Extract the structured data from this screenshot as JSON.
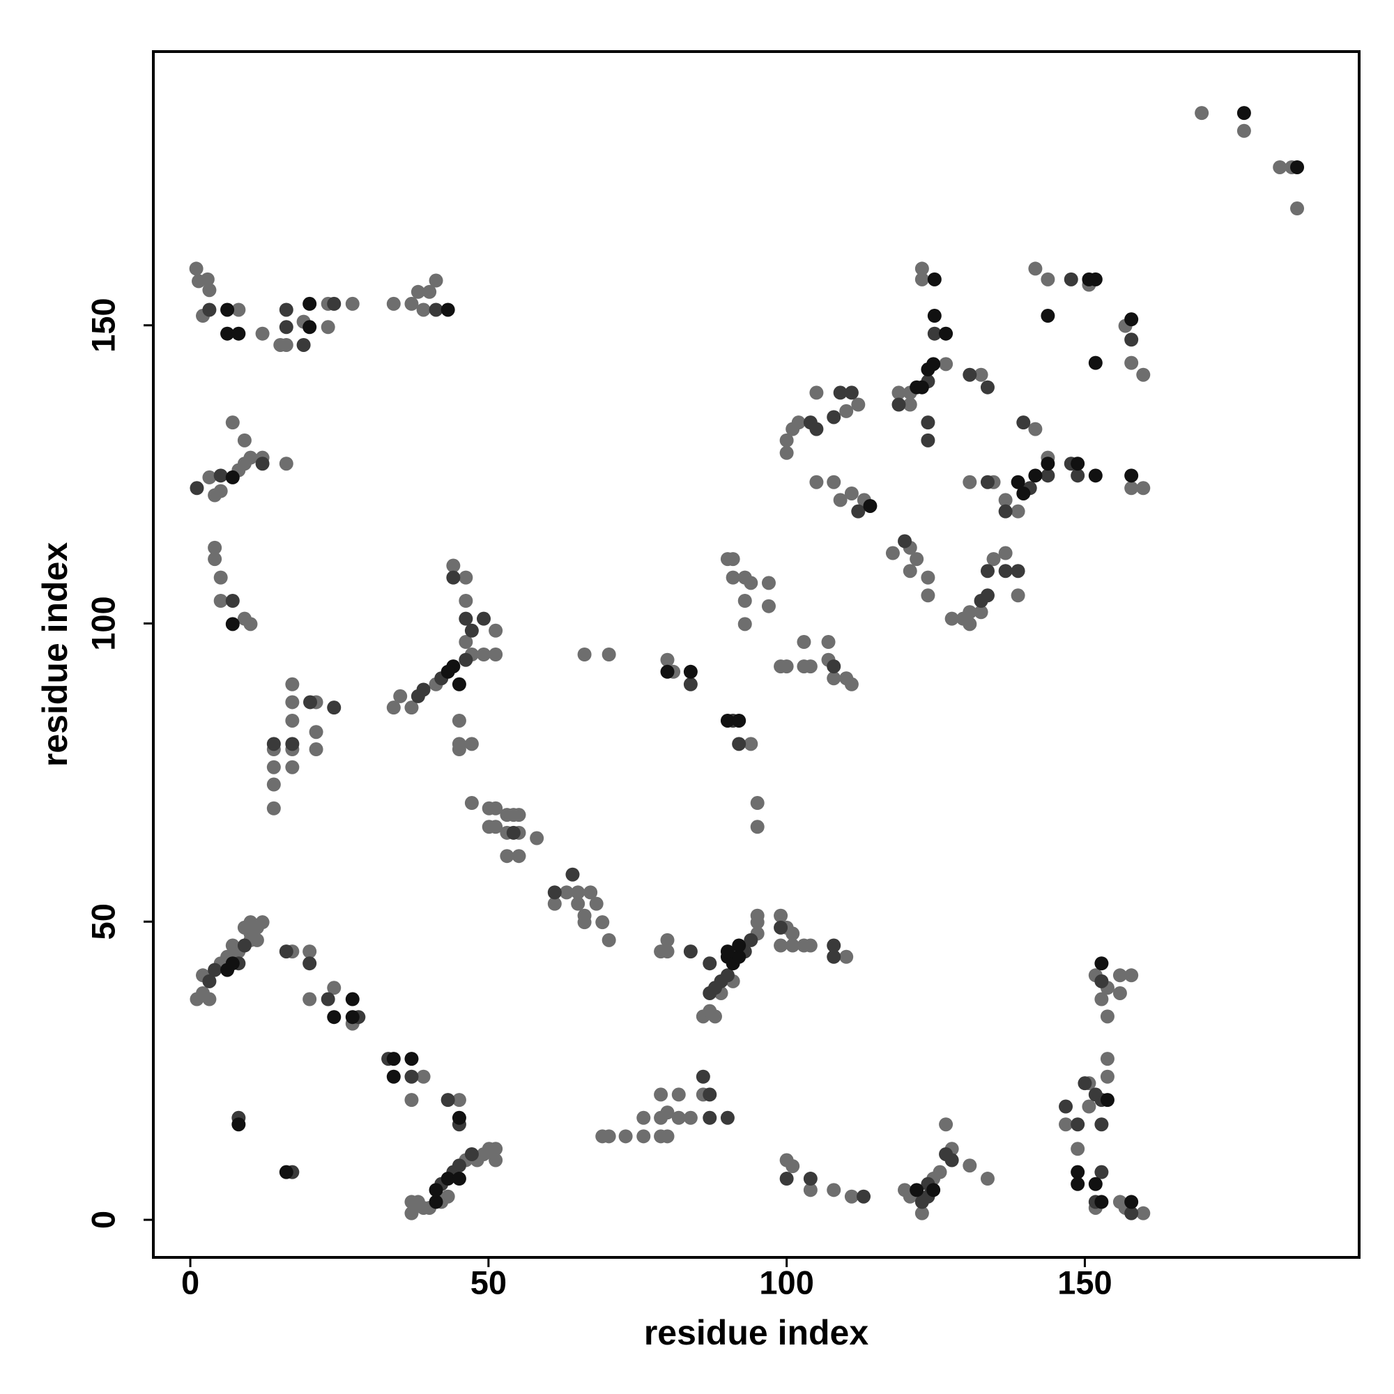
{
  "chart_data": {
    "type": "scatter",
    "xlabel": "residue index",
    "ylabel": "residue index",
    "xlim": [
      -6.2,
      196
    ],
    "ylim": [
      -6.3,
      195.9
    ],
    "xticks": [
      0,
      50,
      100,
      150
    ],
    "yticks": [
      0,
      50,
      100,
      150
    ],
    "series": [
      {
        "color": "#6e6e6e",
        "x": [
          169.6,
          176.7,
          182.7,
          184.7,
          185.6,
          1,
          1.4,
          2.9,
          3.2,
          2.1,
          8.1,
          12.1,
          15.1,
          16.1,
          19,
          23.1,
          23.1,
          27.2,
          34.1,
          37.1,
          38.2,
          39.1,
          40.1,
          41.2,
          3.2,
          4.1,
          5.1,
          8.1,
          9.1,
          10.1,
          12.1,
          7.1,
          9.1,
          16.1,
          4.1,
          4.1,
          5.1,
          5.1,
          9.1,
          10.1,
          14,
          14,
          14,
          14,
          17.1,
          17.1,
          17.1,
          17.1,
          17.1,
          21.1,
          21.1,
          21.1,
          34.1,
          35.2,
          37.1,
          41.2,
          47.2,
          49.2,
          51.2,
          46.2,
          51.2,
          46.2,
          46.2,
          44.1,
          45.1,
          45.1,
          47.2,
          45.1,
          47.2,
          50.1,
          51.2,
          50.1,
          51.2,
          53.1,
          54.2,
          55.1,
          53.1,
          55.1,
          53.1,
          55.1,
          58.1,
          61.1,
          63.1,
          65,
          65,
          67.1,
          66.1,
          66.1,
          68.1,
          69.1,
          70.2,
          1.1,
          2.1,
          2.1,
          3.2,
          5.1,
          6.2,
          8.1,
          10.1,
          10.1,
          11.2,
          12.1,
          11.2,
          9.1,
          10.1,
          7.1,
          17.1,
          20,
          20,
          24.1,
          27.2,
          39.1,
          37.1,
          45.1,
          37.1,
          37.1,
          38.2,
          40.1,
          43.2,
          46.2,
          48.1,
          49.2,
          50.1,
          51.2,
          51.2,
          42.1,
          39.1,
          66.1,
          70.2,
          80,
          81,
          90.1,
          91,
          91,
          93,
          93,
          93,
          94,
          97,
          97,
          94,
          95.1,
          95.1,
          99,
          100,
          102.9,
          102.9,
          104,
          107,
          107,
          107.9,
          110,
          110.9,
          80,
          80,
          78.9,
          86,
          87.1,
          88,
          95.1,
          95.1,
          95.1,
          89,
          91,
          99,
          100,
          101,
          99,
          101,
          102.9,
          104,
          110,
          69.1,
          70.2,
          73,
          76,
          76,
          78.9,
          78.9,
          80,
          80,
          78.9,
          81.9,
          81.9,
          83.9,
          86,
          100,
          101,
          104,
          107.9,
          110.9,
          119.8,
          120.7,
          122.7,
          124.6,
          125.7,
          126.7,
          127.7,
          130.7,
          133.7,
          146.8,
          148.8,
          150.7,
          150.7,
          153.8,
          153.8,
          153.8,
          151.8,
          153.8,
          152.8,
          155.9,
          155.9,
          157.8,
          155.9,
          156.8,
          159.8,
          151.8,
          100,
          100,
          101,
          102,
          105,
          105,
          107.9,
          110,
          112,
          109,
          110.9,
          113,
          118.8,
          120.7,
          122.7,
          122.7,
          126.7,
          120.7,
          132.6,
          130.7,
          134.7,
          136.7,
          138.8,
          141.7,
          143.8,
          141.7,
          143.8,
          150.7,
          157.8,
          159.8,
          156.8,
          157.8,
          159.8,
          117.8,
          120.7,
          121.8,
          120.7,
          123.7,
          123.7,
          127.7,
          129.6,
          130.7,
          130.7,
          132.6,
          134.7,
          136.7,
          138.8
        ],
        "values": [
          185.6,
          182.6,
          176.5,
          176.5,
          169.6,
          159.5,
          157.4,
          157.7,
          155.9,
          151.6,
          152.6,
          148.6,
          146.7,
          146.7,
          150.6,
          153.6,
          149.7,
          153.6,
          153.6,
          153.6,
          155.6,
          152.6,
          155.6,
          157.5,
          124.5,
          121.5,
          122.2,
          125.7,
          126.8,
          127.8,
          127.8,
          133.7,
          130.7,
          126.8,
          112.7,
          110.8,
          107.7,
          103.8,
          100.8,
          99.9,
          69,
          73,
          75.9,
          78.9,
          89.8,
          86.8,
          83.7,
          75.9,
          78.9,
          86.8,
          81.8,
          78.9,
          85.9,
          87.8,
          85.9,
          89.8,
          94.8,
          94.8,
          94.8,
          96.9,
          98.8,
          103.8,
          107.7,
          109.7,
          83.7,
          79.8,
          79.8,
          78.9,
          69.9,
          69,
          69,
          65.9,
          65.9,
          67.9,
          67.9,
          67.9,
          64.9,
          64.9,
          61,
          61,
          64,
          53,
          54.9,
          54.9,
          53,
          54.9,
          51,
          49.9,
          53,
          49.9,
          46.9,
          37,
          38,
          41,
          37,
          43,
          44.1,
          45,
          48,
          46.9,
          49,
          49.9,
          46.9,
          49,
          49.9,
          46,
          45,
          45,
          37,
          38.9,
          32.9,
          24,
          20.1,
          20.1,
          1.1,
          3,
          3,
          2,
          3.9,
          10,
          10,
          11,
          11.9,
          11.9,
          10,
          3,
          2,
          94.8,
          94.8,
          93.9,
          91.9,
          110.8,
          110.8,
          107.7,
          107.7,
          103.8,
          99.9,
          106.8,
          106.8,
          102.9,
          79.8,
          69.9,
          65.9,
          92.8,
          92.8,
          96.9,
          92.8,
          92.8,
          96.9,
          93.9,
          90.8,
          90.8,
          89.8,
          45,
          46.9,
          45,
          34.1,
          35,
          34.1,
          48,
          49.9,
          51,
          38,
          40,
          51,
          49,
          48,
          46,
          46,
          46,
          46,
          44.1,
          14,
          14,
          14,
          14,
          17.1,
          17.1,
          14,
          14,
          18,
          21,
          21,
          17.1,
          17.1,
          21,
          10,
          9,
          5,
          5,
          3.9,
          5,
          3.9,
          1.1,
          6.9,
          8,
          16,
          11.9,
          9.1,
          6.9,
          16,
          11.9,
          22.9,
          19,
          24,
          27,
          34.1,
          41,
          38.9,
          37,
          41,
          38,
          41,
          3,
          2,
          1.1,
          2,
          130.7,
          128.6,
          132.6,
          133.7,
          138.7,
          123.7,
          123.7,
          135.6,
          136.7,
          120.7,
          121.8,
          120.7,
          138.7,
          138.7,
          159.5,
          157.7,
          143.5,
          136.7,
          141.7,
          123.7,
          123.7,
          120.7,
          118.8,
          132.6,
          127.8,
          159.5,
          157.7,
          156.8,
          122.7,
          122.7,
          149.9,
          143.7,
          141.7,
          111.8,
          112.7,
          110.8,
          108.8,
          107.7,
          104.7,
          100.8,
          100.8,
          101.9,
          99.9,
          101.9,
          110.8,
          111.8,
          104.7
        ]
      },
      {
        "color": "#3a3a3a",
        "x": [
          16.1,
          16.1,
          19,
          24.1,
          41.2,
          3.2,
          1.1,
          5.1,
          12.1,
          7.1,
          14,
          17.1,
          20.1,
          24.1,
          38.2,
          39.1,
          42.1,
          46.2,
          47.2,
          46.2,
          49.2,
          44.1,
          54.2,
          61.1,
          64.1,
          3.2,
          4.1,
          8.1,
          9.1,
          16.1,
          20,
          23.1,
          28.2,
          33.2,
          37.1,
          43.2,
          45.1,
          8.1,
          17.1,
          42.1,
          44.1,
          45.1,
          47.2,
          83.9,
          91,
          92,
          83.9,
          87.1,
          88,
          89,
          90.1,
          93,
          94,
          87.1,
          99,
          107.9,
          107.9,
          86,
          87.1,
          87.1,
          90.1,
          100,
          104,
          112.9,
          122.7,
          123.7,
          123.7,
          126.7,
          127.7,
          146.8,
          148.8,
          150,
          151.8,
          151.8,
          152.8,
          152.8,
          152.8,
          152.8,
          157.8,
          104,
          105,
          107.9,
          109,
          110.9,
          112,
          118.8,
          123.7,
          124.8,
          123.7,
          123.7,
          130.7,
          133.7,
          133.7,
          136.7,
          140.8,
          143.8,
          139.7,
          147.7,
          147.7,
          148.8,
          157.8,
          119.8,
          132.6,
          133.7,
          133.7,
          136.7,
          138.8,
          107.9
        ],
        "values": [
          152.6,
          149.7,
          146.7,
          153.6,
          152.6,
          152.6,
          122.7,
          124.8,
          126.8,
          103.8,
          79.8,
          79.8,
          86.8,
          85.9,
          87.8,
          88.9,
          90.8,
          93.9,
          98.8,
          100.8,
          100.8,
          107.7,
          64.9,
          54.9,
          57.9,
          40,
          41.9,
          43,
          46,
          45,
          43,
          37,
          34,
          27,
          24,
          20.1,
          16,
          17.1,
          8,
          6,
          8,
          9.1,
          11,
          89.8,
          83.7,
          79.8,
          45,
          38,
          38.9,
          40,
          41,
          45,
          46.9,
          43,
          49,
          46,
          44.1,
          24,
          21,
          17.1,
          17.1,
          6.9,
          6.9,
          3.9,
          3,
          3.9,
          6,
          11,
          10,
          19,
          16,
          22.9,
          21,
          3,
          8,
          16,
          20.1,
          40,
          1.1,
          133.7,
          132.6,
          134.6,
          138.7,
          138.7,
          118.8,
          136.7,
          140.6,
          148.6,
          133.7,
          130.7,
          141.7,
          139.6,
          123.7,
          118.8,
          122.7,
          124.8,
          133.7,
          157.7,
          126.8,
          124.8,
          147.6,
          113.8,
          103.8,
          104.7,
          108.8,
          108.8,
          108.8,
          92.8
        ]
      },
      {
        "color": "#111111",
        "x": [
          176.7,
          185.6,
          6.2,
          6.2,
          8.1,
          20,
          20,
          43.2,
          7.1,
          7.1,
          44.1,
          43.2,
          45.1,
          6.2,
          7.1,
          24.1,
          27.2,
          27.2,
          34.1,
          37.1,
          34.1,
          45.1,
          8.1,
          16.1,
          41.2,
          41.2,
          43.2,
          45.1,
          80,
          83.9,
          90.1,
          92,
          90.1,
          91,
          92,
          92,
          90.1,
          121.8,
          124.6,
          148.8,
          148.8,
          151.8,
          152.8,
          153.8,
          152.8,
          157.8,
          114,
          121.8,
          122.7,
          123.7,
          124.6,
          124.8,
          124.8,
          126.7,
          138.8,
          139.7,
          141.7,
          143.8,
          143.8,
          150.7,
          151.8,
          151.8,
          148.8,
          151.8,
          157.8,
          157.8
        ],
        "values": [
          185.6,
          176.5,
          152.6,
          148.6,
          148.6,
          153.6,
          149.7,
          152.6,
          124.5,
          99.9,
          92.8,
          91.9,
          89.8,
          41.9,
          43,
          34,
          37,
          34,
          27,
          27,
          24,
          17.1,
          16,
          8,
          3,
          5,
          6.9,
          6.9,
          91.9,
          91.9,
          83.7,
          83.7,
          44.1,
          43,
          44.1,
          46,
          45,
          5,
          5,
          8,
          6,
          6,
          3,
          20.1,
          43,
          3,
          119.7,
          139.6,
          139.6,
          142.6,
          143.5,
          151.6,
          157.7,
          148.6,
          123.7,
          121.8,
          124.8,
          126.8,
          151.6,
          157.7,
          157.7,
          143.7,
          126.8,
          124.8,
          124.8,
          151
        ]
      }
    ]
  }
}
